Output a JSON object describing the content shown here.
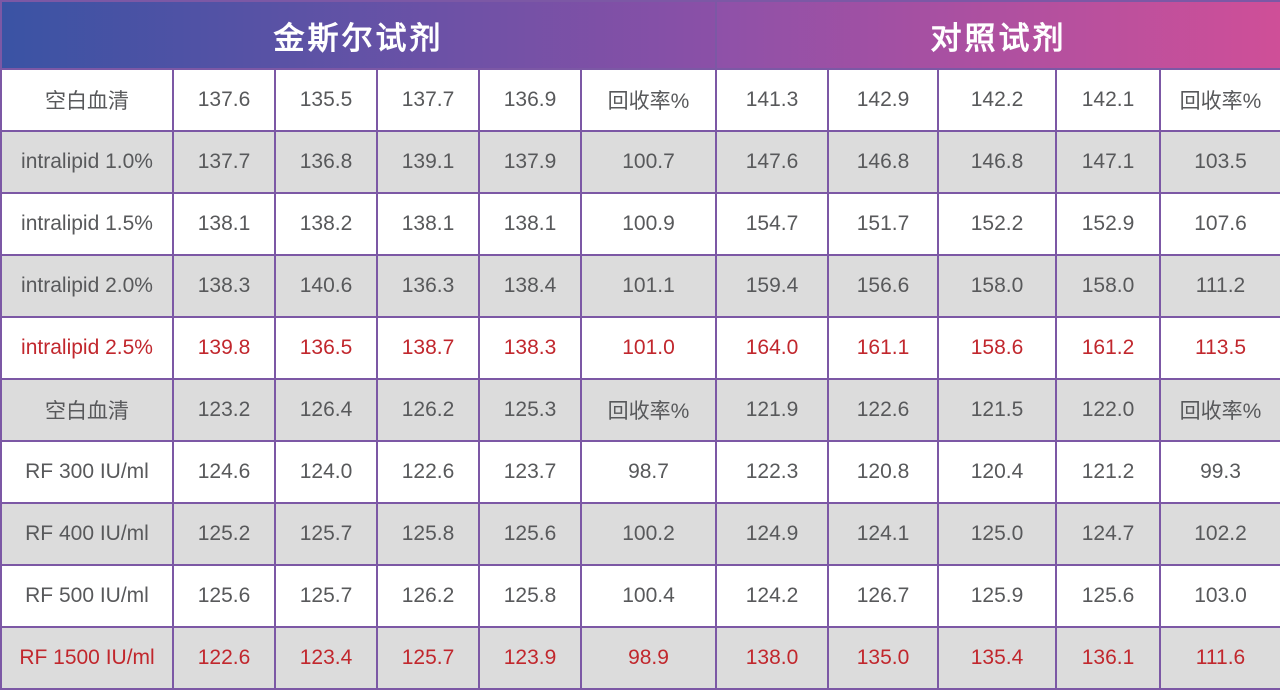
{
  "header": {
    "left_title": "金斯尔试剂",
    "right_title": "对照试剂"
  },
  "colors": {
    "gradient_blue": "#3A53A4",
    "gradient_mid_purple_left": "#8B50A7",
    "gradient_mid_purple_right": "#8E51A8",
    "gradient_pink": "#CF4F98",
    "border_purple": "#7C58A5",
    "header_text": "#FFFFFF",
    "body_text_gray": "#58595B",
    "accent_red": "#C1272D",
    "shaded_row_bg": "#DCDCDC",
    "plain_row_bg": "#FFFFFF"
  },
  "chart_data": {
    "type": "table",
    "title": "",
    "sections": [
      {
        "name": "金斯尔试剂",
        "columns": 5
      },
      {
        "name": "对照试剂",
        "columns": 5
      }
    ],
    "recovery_header_label": "回收率%",
    "rows": [
      {
        "label": "空白血清",
        "left": [
          "137.6",
          "135.5",
          "137.7",
          "136.9"
        ],
        "left_recovery": "回收率%",
        "right": [
          "141.3",
          "142.9",
          "142.2",
          "142.1"
        ],
        "right_recovery": "回收率%",
        "accent": false
      },
      {
        "label": "intralipid 1.0%",
        "left": [
          "137.7",
          "136.8",
          "139.1",
          "137.9"
        ],
        "left_recovery": "100.7",
        "right": [
          "147.6",
          "146.8",
          "146.8",
          "147.1"
        ],
        "right_recovery": "103.5",
        "accent": false
      },
      {
        "label": "intralipid 1.5%",
        "left": [
          "138.1",
          "138.2",
          "138.1",
          "138.1"
        ],
        "left_recovery": "100.9",
        "right": [
          "154.7",
          "151.7",
          "152.2",
          "152.9"
        ],
        "right_recovery": "107.6",
        "accent": false
      },
      {
        "label": "intralipid 2.0%",
        "left": [
          "138.3",
          "140.6",
          "136.3",
          "138.4"
        ],
        "left_recovery": "101.1",
        "right": [
          "159.4",
          "156.6",
          "158.0",
          "158.0"
        ],
        "right_recovery": "111.2",
        "accent": false
      },
      {
        "label": "intralipid 2.5%",
        "left": [
          "139.8",
          "136.5",
          "138.7",
          "138.3"
        ],
        "left_recovery": "101.0",
        "right": [
          "164.0",
          "161.1",
          "158.6",
          "161.2"
        ],
        "right_recovery": "113.5",
        "accent": true
      },
      {
        "label": "空白血清",
        "left": [
          "123.2",
          "126.4",
          "126.2",
          "125.3"
        ],
        "left_recovery": "回收率%",
        "right": [
          "121.9",
          "122.6",
          "121.5",
          "122.0"
        ],
        "right_recovery": "回收率%",
        "accent": false
      },
      {
        "label": "RF 300 IU/ml",
        "left": [
          "124.6",
          "124.0",
          "122.6",
          "123.7"
        ],
        "left_recovery": "98.7",
        "right": [
          "122.3",
          "120.8",
          "120.4",
          "121.2"
        ],
        "right_recovery": "99.3",
        "accent": false
      },
      {
        "label": "RF 400 IU/ml",
        "left": [
          "125.2",
          "125.7",
          "125.8",
          "125.6"
        ],
        "left_recovery": "100.2",
        "right": [
          "124.9",
          "124.1",
          "125.0",
          "124.7"
        ],
        "right_recovery": "102.2",
        "accent": false
      },
      {
        "label": "RF 500 IU/ml",
        "left": [
          "125.6",
          "125.7",
          "126.2",
          "125.8"
        ],
        "left_recovery": "100.4",
        "right": [
          "124.2",
          "126.7",
          "125.9",
          "125.6"
        ],
        "right_recovery": "103.0",
        "accent": false
      },
      {
        "label": "RF 1500 IU/ml",
        "left": [
          "122.6",
          "123.4",
          "125.7",
          "123.9"
        ],
        "left_recovery": "98.9",
        "right": [
          "138.0",
          "135.0",
          "135.4",
          "136.1"
        ],
        "right_recovery": "111.6",
        "accent": true
      }
    ]
  }
}
